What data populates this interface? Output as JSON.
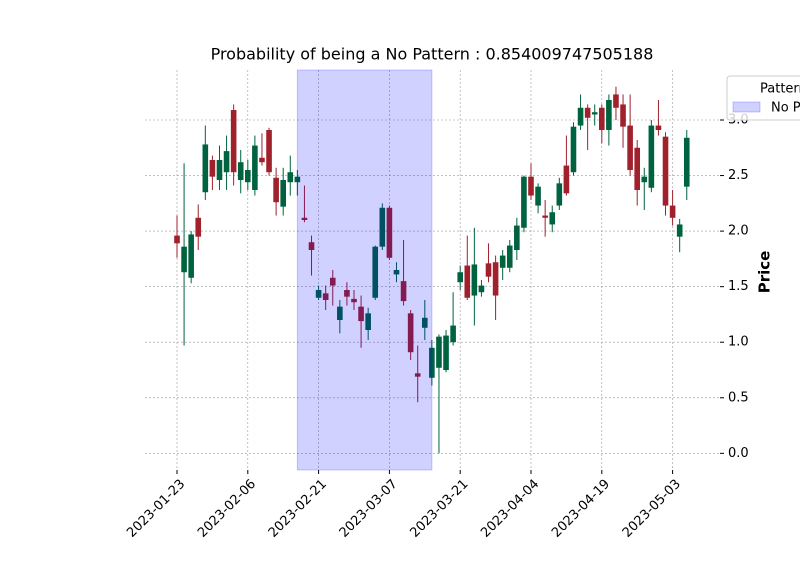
{
  "chart_data": {
    "type": "candlestick",
    "title": "Probability of being a No Pattern : 0.854009747505188",
    "y_label": "Price",
    "x": [
      "2023-01-23",
      "2023-01-24",
      "2023-01-25",
      "2023-01-26",
      "2023-01-27",
      "2023-01-30",
      "2023-01-31",
      "2023-02-01",
      "2023-02-02",
      "2023-02-03",
      "2023-02-06",
      "2023-02-07",
      "2023-02-08",
      "2023-02-09",
      "2023-02-10",
      "2023-02-13",
      "2023-02-14",
      "2023-02-15",
      "2023-02-16",
      "2023-02-17",
      "2023-02-21",
      "2023-02-22",
      "2023-02-23",
      "2023-02-24",
      "2023-02-27",
      "2023-02-28",
      "2023-03-01",
      "2023-03-02",
      "2023-03-03",
      "2023-03-06",
      "2023-03-07",
      "2023-03-08",
      "2023-03-09",
      "2023-03-10",
      "2023-03-13",
      "2023-03-14",
      "2023-03-15",
      "2023-03-16",
      "2023-03-17",
      "2023-03-20",
      "2023-03-21",
      "2023-03-22",
      "2023-03-23",
      "2023-03-24",
      "2023-03-27",
      "2023-03-28",
      "2023-03-29",
      "2023-03-30",
      "2023-03-31",
      "2023-04-03",
      "2023-04-04",
      "2023-04-05",
      "2023-04-06",
      "2023-04-10",
      "2023-04-11",
      "2023-04-12",
      "2023-04-13",
      "2023-04-14",
      "2023-04-17",
      "2023-04-18",
      "2023-04-19",
      "2023-04-20",
      "2023-04-21",
      "2023-04-24",
      "2023-04-25",
      "2023-04-26",
      "2023-04-27",
      "2023-04-28",
      "2023-05-01",
      "2023-05-02",
      "2023-05-03",
      "2023-05-04",
      "2023-05-05"
    ],
    "open": [
      1.96,
      1.63,
      1.58,
      2.12,
      2.35,
      2.64,
      2.46,
      2.53,
      3.09,
      2.46,
      2.44,
      2.37,
      2.66,
      2.91,
      2.48,
      2.22,
      2.44,
      2.44,
      2.12,
      1.9,
      1.4,
      1.44,
      1.58,
      1.2,
      1.47,
      1.39,
      1.32,
      1.11,
      1.4,
      1.86,
      2.21,
      1.61,
      1.55,
      1.26,
      0.72,
      1.13,
      0.68,
      0.77,
      0.75,
      1.0,
      1.54,
      1.69,
      1.42,
      1.45,
      1.71,
      1.72,
      1.67,
      1.67,
      1.83,
      2.03,
      2.49,
      2.23,
      2.14,
      2.06,
      2.23,
      2.59,
      2.53,
      2.95,
      3.11,
      3.05,
      3.11,
      2.91,
      3.23,
      3.14,
      2.95,
      2.75,
      2.44,
      2.39,
      2.95,
      2.85,
      2.23,
      1.95,
      2.4
    ],
    "high": [
      2.14,
      2.61,
      2.0,
      2.24,
      2.95,
      2.68,
      2.77,
      2.86,
      3.14,
      2.73,
      2.64,
      2.86,
      2.88,
      2.93,
      2.57,
      2.57,
      2.68,
      2.55,
      2.41,
      1.96,
      1.51,
      1.51,
      1.65,
      1.38,
      1.54,
      1.47,
      1.42,
      1.31,
      1.87,
      2.25,
      2.23,
      1.72,
      1.92,
      1.29,
      0.97,
      1.38,
      1.02,
      1.07,
      1.11,
      1.45,
      1.69,
      1.96,
      2.03,
      1.56,
      1.89,
      1.78,
      1.83,
      1.92,
      2.12,
      2.5,
      2.61,
      2.43,
      2.28,
      2.23,
      2.48,
      2.86,
      2.98,
      3.23,
      3.14,
      3.14,
      3.14,
      3.23,
      3.3,
      3.23,
      3.23,
      2.82,
      2.57,
      3.0,
      3.18,
      2.89,
      2.37,
      2.11,
      2.91
    ],
    "low": [
      1.76,
      0.97,
      1.53,
      1.83,
      2.28,
      2.37,
      2.37,
      2.37,
      2.41,
      2.34,
      2.37,
      2.32,
      2.59,
      2.5,
      2.14,
      2.14,
      2.32,
      2.32,
      2.08,
      1.6,
      1.38,
      1.29,
      1.33,
      1.08,
      1.33,
      1.29,
      0.95,
      1.02,
      1.38,
      1.83,
      1.74,
      1.54,
      1.33,
      0.84,
      0.46,
      1.02,
      0.61,
      0.0,
      0.73,
      0.97,
      1.47,
      1.38,
      1.15,
      1.41,
      1.54,
      1.2,
      1.56,
      1.63,
      1.74,
      1.99,
      2.28,
      2.16,
      1.95,
      1.99,
      2.19,
      2.32,
      2.5,
      2.91,
      2.73,
      2.95,
      2.79,
      2.77,
      3.0,
      2.75,
      2.5,
      2.23,
      2.19,
      2.35,
      2.86,
      2.14,
      2.05,
      1.81,
      2.28
    ],
    "close": [
      1.89,
      1.86,
      1.97,
      1.95,
      2.78,
      2.49,
      2.64,
      2.72,
      2.53,
      2.62,
      2.55,
      2.77,
      2.62,
      2.53,
      2.26,
      2.46,
      2.53,
      2.49,
      2.1,
      1.83,
      1.47,
      1.38,
      1.51,
      1.32,
      1.41,
      1.36,
      1.19,
      1.26,
      1.86,
      2.21,
      1.76,
      1.65,
      1.37,
      0.91,
      0.69,
      1.22,
      0.95,
      1.05,
      1.06,
      1.15,
      1.63,
      1.4,
      1.7,
      1.51,
      1.59,
      1.42,
      1.78,
      1.87,
      2.05,
      2.49,
      2.32,
      2.4,
      2.12,
      2.17,
      2.43,
      2.34,
      2.94,
      3.11,
      3.02,
      3.07,
      2.91,
      3.18,
      3.11,
      2.94,
      2.55,
      2.37,
      2.49,
      2.95,
      2.91,
      2.23,
      2.12,
      2.06,
      2.84
    ],
    "up_color": "#006340",
    "down_color": "#a0202c",
    "ylim": [
      -0.15,
      3.45
    ],
    "yticks": [
      {
        "value": 0,
        "label": "0.0"
      },
      0.5,
      {
        "value": 1,
        "label": "1.0"
      },
      1.5,
      {
        "value": 2,
        "label": "2.0"
      },
      2.5,
      {
        "value": 3,
        "label": "3.0"
      }
    ],
    "xticks": [
      "2023-01-23",
      "2023-02-06",
      "2023-02-21",
      "2023-03-07",
      "2023-03-21",
      "2023-04-04",
      "2023-04-19",
      "2023-05-03"
    ],
    "grid": true,
    "highlight": {
      "start": "2023-02-15",
      "end": "2023-03-15",
      "color": "#0000ff",
      "label": "No Pattern"
    },
    "legend": {
      "title": "Pattern",
      "loc": "upper right"
    }
  }
}
